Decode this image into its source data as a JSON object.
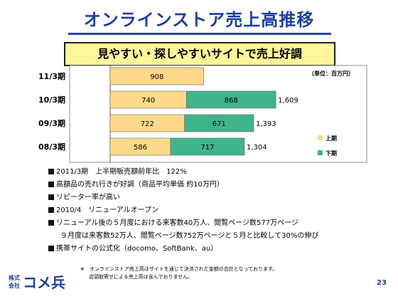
{
  "slide": {
    "title": "オンラインストア売上高推移",
    "subtitle": "見やすい・探しやすいサイトで売上好調",
    "unit": "（単位：百万円）",
    "page_number": "23",
    "footnote": [
      "※　オンラインストア売上高はサイトを通じて決済された金額の合計となっております。",
      "店頭取寄せによる売上高は含んでおりません。"
    ],
    "logo_prefix_top": "株式",
    "logo_prefix_bottom": "会社",
    "logo_name": "コメ兵",
    "bullets": [
      "2011/3期　上半期販売額前年比　122%",
      "高額品の売れ行きが好調（商品平均単価 約10万円）",
      "リピーター率が高い",
      "2010/4　リニューアルオープン",
      "リニューアル後の５月度における来客数40万人、閲覧ページ数577万ページ",
      "９月度は来客数52万人、閲覧ページ数752万ページと５月と比較して30%の伸び",
      "携帯サイトの公式化（docomo、SoftBank、au）"
    ]
  },
  "chart_data": {
    "type": "bar",
    "orientation": "horizontal",
    "stacked": true,
    "categories": [
      "11/3期",
      "10/3期",
      "09/3期",
      "08/3期"
    ],
    "series": [
      {
        "name": "上期",
        "values": [
          908,
          740,
          722,
          586
        ],
        "color": "#ffd98a"
      },
      {
        "name": "下期",
        "values": [
          null,
          868,
          671,
          717
        ],
        "color": "#3fb58a"
      }
    ],
    "totals": [
      "",
      "1,609",
      "1,393",
      "1,304"
    ],
    "value_labels": {
      "上期": [
        "908",
        "740",
        "722",
        "586"
      ],
      "下期": [
        "",
        "868",
        "671",
        "717"
      ]
    },
    "xlim": [
      0,
      1800
    ],
    "legend_position": "right",
    "grid": false
  }
}
